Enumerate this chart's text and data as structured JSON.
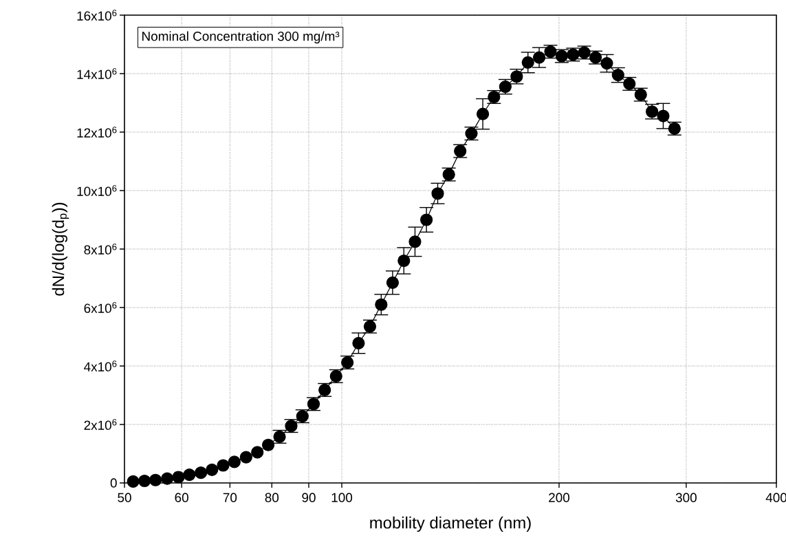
{
  "chart_data": {
    "type": "line",
    "xlabel": "mobility diameter (nm)",
    "ylabel": "dN/d(log(d$_{p}$))",
    "annotations": [
      "Nominal Concentration 300 mg/m³"
    ],
    "log": "x",
    "grid": true,
    "marker": "circle",
    "line_style": "solid",
    "xlim": [
      50,
      400
    ],
    "xticks": [
      50,
      60,
      70,
      80,
      90,
      100,
      200,
      300,
      400
    ],
    "ylim": [
      0,
      16000000
    ],
    "yticks": [
      0,
      {
        "value": 2000000,
        "label": "2x10$^{6}$"
      },
      {
        "value": 4000000,
        "label": "4x10$^{6}$"
      },
      {
        "value": 6000000,
        "label": "6x10$^{6}$"
      },
      {
        "value": 8000000,
        "label": "8x10$^{6}$"
      },
      {
        "value": 10000000,
        "label": "10x10$^{6}$"
      },
      {
        "value": 12000000,
        "label": "12x10$^{6}$"
      },
      {
        "value": 14000000,
        "label": "14x10$^{6}$"
      },
      {
        "value": 16000000,
        "label": "16x10$^{6}$"
      }
    ],
    "x": [
      51.4,
      53.3,
      55.2,
      57.3,
      59.4,
      61.5,
      63.8,
      66.1,
      68.5,
      71.0,
      73.7,
      76.4,
      79.1,
      82.0,
      85.1,
      88.2,
      91.4,
      94.7,
      98.2,
      101.8,
      105.5,
      109.4,
      113.4,
      117.6,
      121.9,
      126.3,
      131.0,
      135.8,
      140.7,
      145.9,
      151.2,
      156.8,
      162.5,
      168.5,
      174.7,
      181.1,
      187.7,
      194.6,
      201.7,
      209.1,
      216.7,
      224.7,
      232.9,
      241.4,
      250.3,
      259.5,
      269.0,
      278.8,
      289.0
    ],
    "series": [
      {
        "color": "#000000",
        "values": [
          50000,
          70000,
          100000,
          150000,
          200000,
          280000,
          350000,
          450000,
          600000,
          720000,
          880000,
          1050000,
          1300000,
          1580000,
          1950000,
          2280000,
          2700000,
          3180000,
          3650000,
          4120000,
          4780000,
          5350000,
          6100000,
          6850000,
          7600000,
          8250000,
          9000000,
          9900000,
          10550000,
          11350000,
          11950000,
          12620000,
          13200000,
          13550000,
          13900000,
          14380000,
          14550000,
          14750000,
          14600000,
          14650000,
          14720000,
          14550000,
          14350000,
          13950000,
          13650000,
          13280000,
          12700000,
          12550000,
          12120000
        ],
        "errors": [
          null,
          null,
          null,
          null,
          null,
          null,
          null,
          null,
          null,
          null,
          null,
          null,
          null,
          220000,
          220000,
          220000,
          220000,
          220000,
          220000,
          220000,
          350000,
          220000,
          350000,
          400000,
          450000,
          500000,
          420000,
          350000,
          220000,
          220000,
          220000,
          520000,
          220000,
          250000,
          250000,
          350000,
          340000,
          220000,
          220000,
          220000,
          220000,
          220000,
          300000,
          250000,
          220000,
          220000,
          250000,
          430000,
          220000
        ]
      }
    ]
  }
}
